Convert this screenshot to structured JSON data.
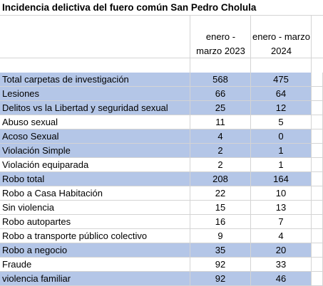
{
  "title": "Incidencia delictiva del fuero común San Pedro Cholula",
  "table": {
    "columns": [
      [
        "enero -",
        "marzo 2023"
      ],
      [
        "enero - marzo",
        "2024"
      ]
    ],
    "rows": [
      {
        "label": "Total carpetas de investigación",
        "values": [
          568,
          475
        ],
        "shaded": true
      },
      {
        "label": "Lesiones",
        "values": [
          66,
          64
        ],
        "shaded": true
      },
      {
        "label": "Delitos vs la Libertad y seguridad sexual",
        "values": [
          25,
          12
        ],
        "shaded": true
      },
      {
        "label": "Abuso sexual",
        "values": [
          11,
          5
        ],
        "shaded": false
      },
      {
        "label": "Acoso Sexual",
        "values": [
          4,
          0
        ],
        "shaded": true
      },
      {
        "label": "Violación Simple",
        "values": [
          2,
          1
        ],
        "shaded": true
      },
      {
        "label": "Violación equiparada",
        "values": [
          2,
          1
        ],
        "shaded": false
      },
      {
        "label": "Robo total",
        "values": [
          208,
          164
        ],
        "shaded": true
      },
      {
        "label": "Robo a Casa Habitación",
        "values": [
          22,
          10
        ],
        "shaded": false
      },
      {
        "label": "Sin violencia",
        "values": [
          15,
          13
        ],
        "shaded": false
      },
      {
        "label": "Robo autopartes",
        "values": [
          16,
          7
        ],
        "shaded": false
      },
      {
        "label": "Robo a transporte público colectivo",
        "values": [
          9,
          4
        ],
        "shaded": false
      },
      {
        "label": "Robo a negocio",
        "values": [
          35,
          20
        ],
        "shaded": true
      },
      {
        "label": "Fraude",
        "values": [
          92,
          33
        ],
        "shaded": false
      },
      {
        "label": "violencia familiar",
        "values": [
          92,
          46
        ],
        "shaded": true
      }
    ]
  }
}
